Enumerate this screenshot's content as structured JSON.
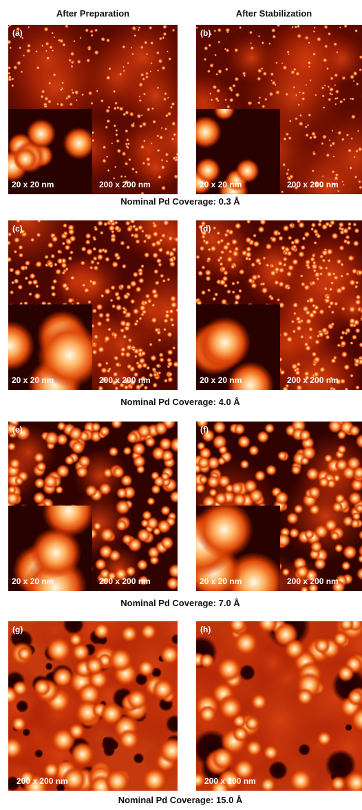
{
  "headers": [
    "After Preparation",
    "After Stabilization"
  ],
  "rows": [
    {
      "caption": "Nominal Pd Coverage: 0.3 Å",
      "panels": [
        {
          "label": "(a)",
          "inset_label": "20 x 20 nm",
          "scale_label": "200 x 200 nm"
        },
        {
          "label": "(b)",
          "inset_label": "20 x 20 nm",
          "scale_label": "200 x 200 nm"
        }
      ]
    },
    {
      "caption": "Nominal Pd Coverage: 4.0 Å",
      "panels": [
        {
          "label": "(c)",
          "inset_label": "20 x 20 nm",
          "scale_label": "200 x 200 nm"
        },
        {
          "label": "(d)",
          "inset_label": "20 x 20 nm",
          "scale_label": "200 x 200 nm"
        }
      ]
    },
    {
      "caption": "Nominal Pd Coverage: 7.0 Å",
      "panels": [
        {
          "label": "(e)",
          "inset_label": "20 x 20 nm",
          "scale_label": "200 x 200 nm"
        },
        {
          "label": "(f)",
          "inset_label": "20 x 20 nm",
          "scale_label": "200 x 200 nm"
        }
      ]
    },
    {
      "caption": "Nominal Pd Coverage: 15.0 Å",
      "panels": [
        {
          "label": "(g)",
          "scale_label": "200 x 200 nm"
        },
        {
          "label": "(h)",
          "scale_label": "200 x 200 nm"
        }
      ]
    }
  ]
}
